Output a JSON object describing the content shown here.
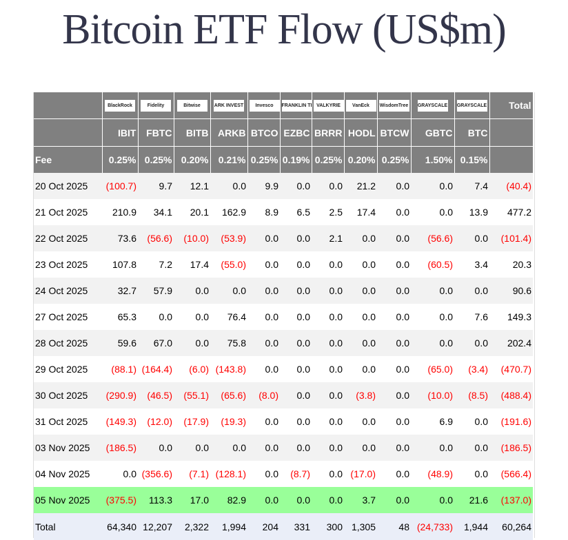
{
  "title": "Bitcoin ETF Flow (US$m)",
  "colors": {
    "header_bg": "#808080",
    "negative": "#ff0000",
    "latest_row": "#99ff99",
    "total_row": "#eaeef8",
    "stripe": "#f2f2f2"
  },
  "header": {
    "total_label": "Total",
    "fee_label": "Fee",
    "funds": [
      {
        "issuer_logo": "BlackRock",
        "ticker": "IBIT",
        "fee": "0.25%"
      },
      {
        "issuer_logo": "Fidelity",
        "ticker": "FBTC",
        "fee": "0.25%"
      },
      {
        "issuer_logo": "Bitwise",
        "ticker": "BITB",
        "fee": "0.20%"
      },
      {
        "issuer_logo": "ARK INVEST",
        "ticker": "ARKB",
        "fee": "0.21%"
      },
      {
        "issuer_logo": "Invesco",
        "ticker": "BTCO",
        "fee": "0.25%"
      },
      {
        "issuer_logo": "FRANKLIN TEMPLETON",
        "ticker": "EZBC",
        "fee": "0.19%"
      },
      {
        "issuer_logo": "VALKYRIE",
        "ticker": "BRRR",
        "fee": "0.25%"
      },
      {
        "issuer_logo": "VanEck",
        "ticker": "HODL",
        "fee": "0.20%"
      },
      {
        "issuer_logo": "WisdomTree",
        "ticker": "BTCW",
        "fee": "0.25%"
      },
      {
        "issuer_logo": "GRAYSCALE",
        "ticker": "GBTC",
        "fee": "1.50%"
      },
      {
        "issuer_logo": "GRAYSCALE",
        "ticker": "BTC",
        "fee": "0.15%"
      }
    ]
  },
  "rows": [
    {
      "date": "20 Oct 2025",
      "values": [
        "(100.7)",
        "9.7",
        "12.1",
        "0.0",
        "9.9",
        "0.0",
        "0.0",
        "21.2",
        "0.0",
        "0.0",
        "7.4",
        "(40.4)"
      ]
    },
    {
      "date": "21 Oct 2025",
      "values": [
        "210.9",
        "34.1",
        "20.1",
        "162.9",
        "8.9",
        "6.5",
        "2.5",
        "17.4",
        "0.0",
        "0.0",
        "13.9",
        "477.2"
      ]
    },
    {
      "date": "22 Oct 2025",
      "values": [
        "73.6",
        "(56.6)",
        "(10.0)",
        "(53.9)",
        "0.0",
        "0.0",
        "2.1",
        "0.0",
        "0.0",
        "(56.6)",
        "0.0",
        "(101.4)"
      ]
    },
    {
      "date": "23 Oct 2025",
      "values": [
        "107.8",
        "7.2",
        "17.4",
        "(55.0)",
        "0.0",
        "0.0",
        "0.0",
        "0.0",
        "0.0",
        "(60.5)",
        "3.4",
        "20.3"
      ]
    },
    {
      "date": "24 Oct 2025",
      "values": [
        "32.7",
        "57.9",
        "0.0",
        "0.0",
        "0.0",
        "0.0",
        "0.0",
        "0.0",
        "0.0",
        "0.0",
        "0.0",
        "90.6"
      ]
    },
    {
      "date": "27 Oct 2025",
      "values": [
        "65.3",
        "0.0",
        "0.0",
        "76.4",
        "0.0",
        "0.0",
        "0.0",
        "0.0",
        "0.0",
        "0.0",
        "7.6",
        "149.3"
      ]
    },
    {
      "date": "28 Oct 2025",
      "values": [
        "59.6",
        "67.0",
        "0.0",
        "75.8",
        "0.0",
        "0.0",
        "0.0",
        "0.0",
        "0.0",
        "0.0",
        "0.0",
        "202.4"
      ]
    },
    {
      "date": "29 Oct 2025",
      "values": [
        "(88.1)",
        "(164.4)",
        "(6.0)",
        "(143.8)",
        "0.0",
        "0.0",
        "0.0",
        "0.0",
        "0.0",
        "(65.0)",
        "(3.4)",
        "(470.7)"
      ]
    },
    {
      "date": "30 Oct 2025",
      "values": [
        "(290.9)",
        "(46.5)",
        "(55.1)",
        "(65.6)",
        "(8.0)",
        "0.0",
        "0.0",
        "(3.8)",
        "0.0",
        "(10.0)",
        "(8.5)",
        "(488.4)"
      ]
    },
    {
      "date": "31 Oct 2025",
      "values": [
        "(149.3)",
        "(12.0)",
        "(17.9)",
        "(19.3)",
        "0.0",
        "0.0",
        "0.0",
        "0.0",
        "0.0",
        "6.9",
        "0.0",
        "(191.6)"
      ]
    },
    {
      "date": "03 Nov 2025",
      "values": [
        "(186.5)",
        "0.0",
        "0.0",
        "0.0",
        "0.0",
        "0.0",
        "0.0",
        "0.0",
        "0.0",
        "0.0",
        "0.0",
        "(186.5)"
      ]
    },
    {
      "date": "04 Nov 2025",
      "values": [
        "0.0",
        "(356.6)",
        "(7.1)",
        "(128.1)",
        "0.0",
        "(8.7)",
        "0.0",
        "(17.0)",
        "0.0",
        "(48.9)",
        "0.0",
        "(566.4)"
      ]
    },
    {
      "date": "05 Nov 2025",
      "latest": true,
      "values": [
        "(375.5)",
        "113.3",
        "17.0",
        "82.9",
        "0.0",
        "0.0",
        "0.0",
        "3.7",
        "0.0",
        "0.0",
        "21.6",
        "(137.0)"
      ]
    }
  ],
  "total_row": {
    "label": "Total",
    "values": [
      "64,340",
      "12,207",
      "2,322",
      "1,994",
      "204",
      "331",
      "300",
      "1,305",
      "48",
      "(24,733)",
      "1,944",
      "60,264"
    ]
  }
}
